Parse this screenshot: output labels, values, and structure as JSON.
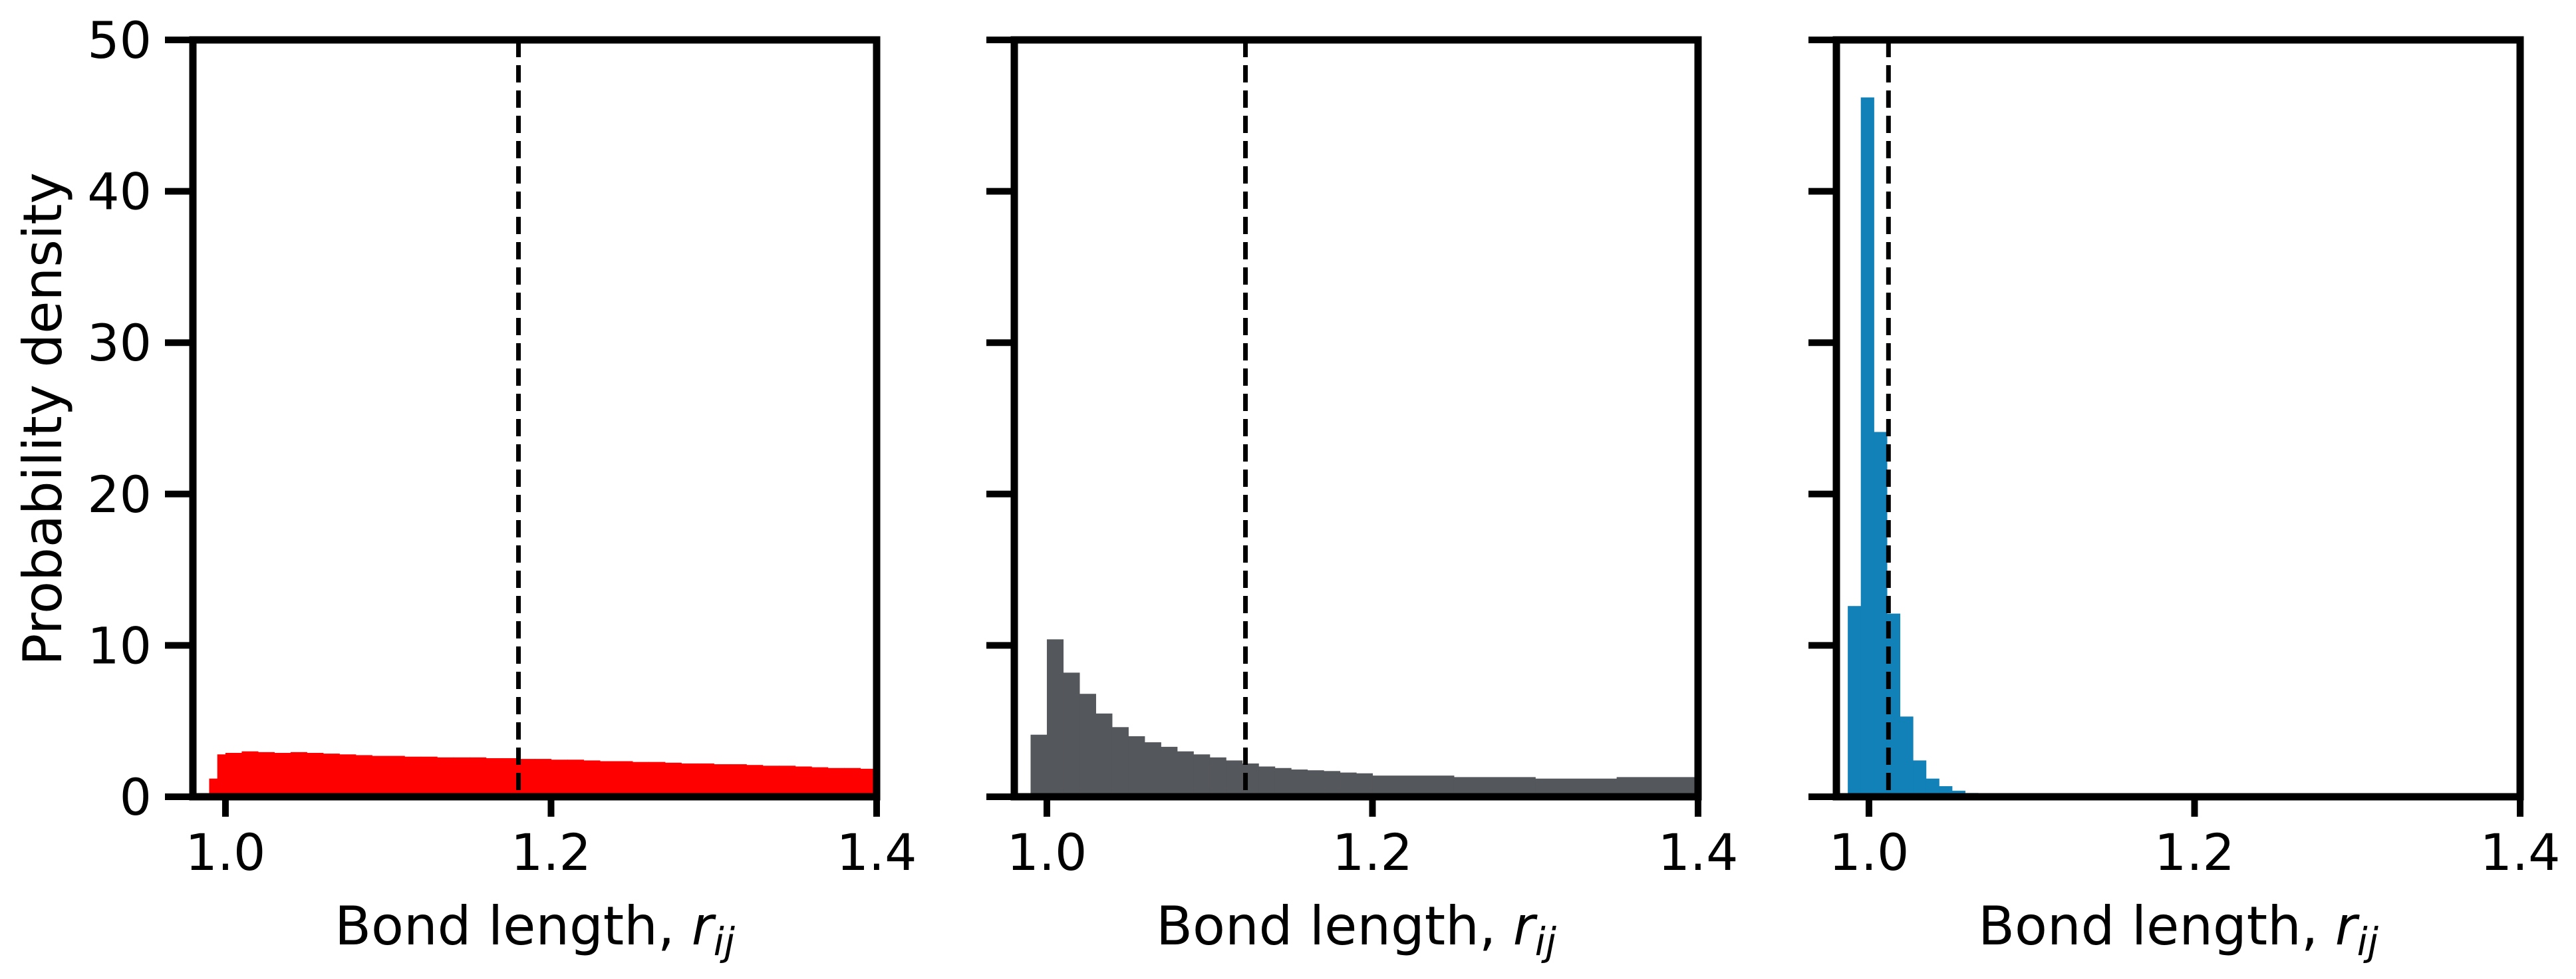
{
  "figure": {
    "ylabel": "Probability density",
    "xlabel_prefix": "Bond length, ",
    "xlabel_var": "r",
    "xlabel_sub": "ij"
  },
  "chart_data": [
    {
      "type": "bar",
      "panel": "left",
      "color": "#ff0000",
      "xlim": [
        0.98,
        1.4
      ],
      "ylim": [
        0,
        50
      ],
      "xticks": [
        "1.0",
        "1.2",
        "1.4"
      ],
      "yticks": [
        "0",
        "10",
        "20",
        "30",
        "40",
        "50"
      ],
      "show_ytick_labels": true,
      "vline_x": 1.18,
      "xlabel": "Bond length, r_ij",
      "ylabel": "Probability density",
      "bin_edges": [
        0.99,
        0.995,
        1.0,
        1.01,
        1.02,
        1.03,
        1.04,
        1.05,
        1.06,
        1.07,
        1.08,
        1.09,
        1.1,
        1.11,
        1.12,
        1.13,
        1.14,
        1.15,
        1.16,
        1.17,
        1.18,
        1.19,
        1.2,
        1.21,
        1.22,
        1.23,
        1.24,
        1.25,
        1.26,
        1.27,
        1.28,
        1.29,
        1.3,
        1.31,
        1.32,
        1.33,
        1.34,
        1.35,
        1.36,
        1.37,
        1.38,
        1.39,
        1.4
      ],
      "values": [
        1.2,
        2.8,
        2.9,
        3.0,
        2.95,
        2.9,
        2.95,
        2.9,
        2.85,
        2.8,
        2.75,
        2.7,
        2.7,
        2.65,
        2.65,
        2.6,
        2.6,
        2.6,
        2.55,
        2.55,
        2.5,
        2.5,
        2.45,
        2.45,
        2.4,
        2.35,
        2.35,
        2.3,
        2.3,
        2.25,
        2.2,
        2.2,
        2.15,
        2.15,
        2.1,
        2.05,
        2.05,
        2.0,
        1.95,
        1.9,
        1.9,
        1.85
      ]
    },
    {
      "type": "bar",
      "panel": "middle",
      "color": "#54575c",
      "xlim": [
        0.98,
        1.4
      ],
      "ylim": [
        0,
        50
      ],
      "xticks": [
        "1.0",
        "1.2",
        "1.4"
      ],
      "yticks": [
        "0",
        "10",
        "20",
        "30",
        "40",
        "50"
      ],
      "show_ytick_labels": false,
      "vline_x": 1.122,
      "xlabel": "Bond length, r_ij",
      "bin_edges": [
        0.99,
        1.0,
        1.01,
        1.02,
        1.03,
        1.04,
        1.05,
        1.06,
        1.07,
        1.08,
        1.09,
        1.1,
        1.11,
        1.12,
        1.13,
        1.14,
        1.15,
        1.16,
        1.17,
        1.18,
        1.19,
        1.2,
        1.25,
        1.3,
        1.35,
        1.4
      ],
      "values": [
        4.1,
        10.4,
        8.2,
        6.8,
        5.5,
        4.6,
        4.0,
        3.6,
        3.3,
        3.0,
        2.8,
        2.6,
        2.4,
        2.2,
        2.0,
        1.9,
        1.8,
        1.75,
        1.7,
        1.6,
        1.55,
        1.4,
        1.3,
        1.2,
        1.3
      ]
    },
    {
      "type": "bar",
      "panel": "right",
      "color": "#1181b8",
      "xlim": [
        0.98,
        1.4
      ],
      "ylim": [
        0,
        50
      ],
      "xticks": [
        "1.0",
        "1.2",
        "1.4"
      ],
      "yticks": [
        "0",
        "10",
        "20",
        "30",
        "40",
        "50"
      ],
      "show_ytick_labels": false,
      "vline_x": 1.012,
      "xlabel": "Bond length, r_ij",
      "bin_edges": [
        0.987,
        0.995,
        1.003,
        1.011,
        1.019,
        1.027,
        1.035,
        1.043,
        1.051,
        1.059,
        1.067,
        1.075,
        1.083
      ],
      "values": [
        12.6,
        46.2,
        24.1,
        12.1,
        5.3,
        2.4,
        1.2,
        0.7,
        0.4,
        0.25,
        0.15,
        0.1
      ]
    }
  ]
}
